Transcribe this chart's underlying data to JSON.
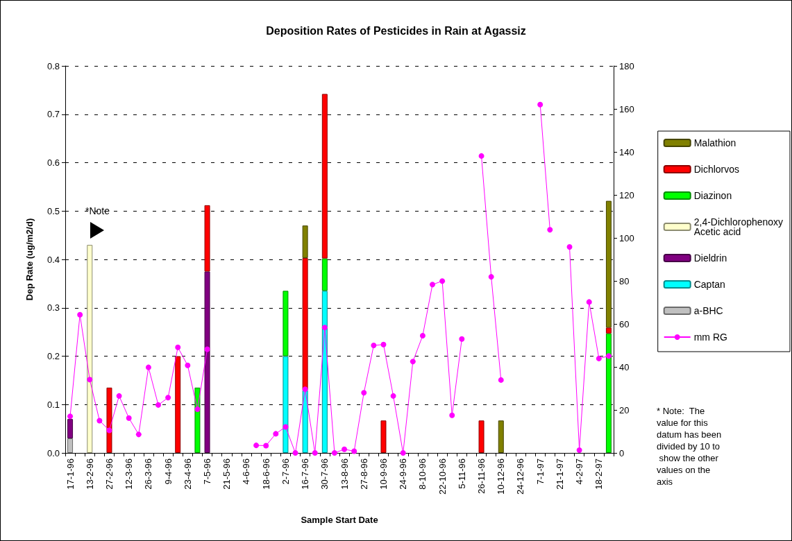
{
  "chart_data": {
    "type": "bar",
    "title": "Deposition Rates of Pesticides in Rain at Agassiz",
    "xlabel": "Sample Start Date",
    "ylabel": "Dep Rate (ug/m2/d)",
    "categories": [
      "17-1-96",
      null,
      "13-2-96",
      null,
      "27-2-96",
      null,
      "12-3-96",
      null,
      "26-3-96",
      null,
      "9-4-96",
      null,
      "23-4-96",
      null,
      "7-5-96",
      null,
      "21-5-96",
      null,
      "4-6-96",
      null,
      "18-6-96",
      null,
      "2-7-96",
      null,
      "16-7-96",
      null,
      "30-7-96",
      null,
      "13-8-96",
      null,
      "27-8-96",
      null,
      "10-9-96",
      null,
      "24-9-96",
      null,
      "8-10-96",
      null,
      "22-10-96",
      null,
      "5-11-96",
      null,
      "26-11-96",
      null,
      "10-12-96",
      null,
      "24-12-96",
      null,
      "7-1-97",
      null,
      "21-1-97",
      null,
      "4-2-97",
      null,
      "18-2-97",
      null
    ],
    "series": [
      {
        "name": "a-BHC",
        "color": "#c0c0c0",
        "values": [
          0.03,
          null,
          null,
          null,
          null,
          null,
          null,
          null,
          null,
          null,
          null,
          null,
          null,
          null,
          null,
          null,
          null,
          null,
          null,
          null,
          null,
          null,
          null,
          null,
          null,
          null,
          null,
          null,
          null,
          null,
          null,
          null,
          null,
          null,
          null,
          null,
          null,
          null,
          null,
          null,
          null,
          null,
          null,
          null,
          null,
          null,
          null,
          null,
          null,
          null,
          null,
          null,
          null,
          null,
          null,
          null
        ]
      },
      {
        "name": "Captan",
        "color": "#00ffff",
        "values": [
          null,
          null,
          null,
          null,
          null,
          null,
          null,
          null,
          null,
          null,
          null,
          null,
          null,
          null,
          null,
          null,
          null,
          null,
          null,
          null,
          null,
          null,
          0.2,
          null,
          0.13,
          null,
          0.335,
          null,
          null,
          null,
          null,
          null,
          null,
          null,
          null,
          null,
          null,
          null,
          null,
          null,
          null,
          null,
          null,
          null,
          null,
          null,
          null,
          null,
          null,
          null,
          null,
          null,
          null,
          null,
          null,
          null
        ]
      },
      {
        "name": "Dieldrin",
        "color": "#800080",
        "values": [
          0.04,
          null,
          null,
          null,
          null,
          null,
          null,
          null,
          null,
          null,
          null,
          null,
          null,
          null,
          0.375,
          null,
          null,
          null,
          null,
          null,
          null,
          null,
          null,
          null,
          null,
          null,
          null,
          null,
          null,
          null,
          null,
          null,
          null,
          null,
          null,
          null,
          null,
          null,
          null,
          null,
          null,
          null,
          null,
          null,
          null,
          null,
          null,
          null,
          null,
          null,
          null,
          null,
          null,
          null,
          null,
          null
        ]
      },
      {
        "name": "2,4-Dichlorophenoxy Acetic acid",
        "color": "#ffffcc",
        "values": [
          null,
          null,
          0.43,
          null,
          null,
          null,
          null,
          null,
          null,
          null,
          null,
          null,
          null,
          null,
          null,
          null,
          null,
          null,
          null,
          null,
          null,
          null,
          null,
          null,
          null,
          null,
          null,
          null,
          null,
          null,
          null,
          null,
          null,
          null,
          null,
          null,
          null,
          null,
          null,
          null,
          null,
          null,
          null,
          null,
          null,
          null,
          null,
          null,
          null,
          null,
          null,
          null,
          null,
          null,
          null,
          null
        ]
      },
      {
        "name": "Diazinon",
        "color": "#00ff00",
        "values": [
          null,
          null,
          null,
          null,
          null,
          null,
          null,
          null,
          null,
          null,
          null,
          null,
          null,
          0.135,
          null,
          null,
          null,
          null,
          null,
          null,
          null,
          null,
          0.135,
          null,
          null,
          null,
          0.067,
          null,
          null,
          null,
          null,
          null,
          null,
          null,
          null,
          null,
          null,
          null,
          null,
          null,
          null,
          null,
          null,
          null,
          null,
          null,
          null,
          null,
          null,
          null,
          null,
          null,
          null,
          null,
          null,
          0.247
        ]
      },
      {
        "name": "Dichlorvos",
        "color": "#ff0000",
        "values": [
          null,
          null,
          null,
          null,
          0.135,
          null,
          null,
          null,
          null,
          null,
          null,
          0.2,
          null,
          null,
          0.137,
          null,
          null,
          null,
          null,
          null,
          null,
          null,
          null,
          null,
          0.273,
          null,
          0.34,
          null,
          null,
          null,
          null,
          null,
          0.067,
          null,
          null,
          null,
          null,
          null,
          null,
          null,
          null,
          null,
          0.067,
          null,
          null,
          null,
          null,
          null,
          null,
          null,
          null,
          null,
          null,
          null,
          null,
          0.012
        ]
      },
      {
        "name": "Malathion",
        "color": "#808000",
        "values": [
          null,
          null,
          null,
          null,
          null,
          null,
          null,
          null,
          null,
          null,
          null,
          null,
          null,
          null,
          null,
          null,
          null,
          null,
          null,
          null,
          null,
          null,
          null,
          null,
          0.067,
          null,
          null,
          null,
          null,
          null,
          null,
          null,
          null,
          null,
          null,
          null,
          null,
          null,
          null,
          null,
          null,
          null,
          null,
          null,
          0.067,
          null,
          null,
          null,
          null,
          null,
          null,
          null,
          null,
          null,
          null,
          0.262
        ]
      },
      {
        "name": "mm RG",
        "type": "line",
        "axis": "y2",
        "color": "#ff00ff",
        "values": [
          17,
          64.3,
          34.1,
          15,
          10.5,
          26.5,
          16.2,
          8.6,
          39.8,
          22.3,
          25.7,
          49.1,
          40.7,
          20.3,
          48.2,
          null,
          null,
          null,
          null,
          3.5,
          3.4,
          8.9,
          12.1,
          0,
          29.6,
          0,
          58.3,
          0,
          1.7,
          0.8,
          28,
          50,
          50.4,
          26.5,
          0,
          42.5,
          54.5,
          78.3,
          79.9,
          17.5,
          53,
          null,
          138.1,
          81.9,
          33.9,
          null,
          null,
          null,
          162,
          103.8,
          null,
          95.8,
          1.3,
          70.2,
          43.9,
          45.1
        ]
      }
    ],
    "stacked": true,
    "ylim": [
      0,
      0.8
    ],
    "yticks": [
      {
        "value": 0,
        "label": "0.0"
      },
      0.1,
      0.2,
      0.3,
      0.4,
      0.5,
      0.6,
      0.7,
      0.8
    ],
    "y2lim": [
      0,
      180
    ],
    "y2ticks": [
      0,
      20,
      40,
      60,
      80,
      100,
      120,
      140,
      160,
      180
    ],
    "grid": "y",
    "legend": "right",
    "marker": "circle",
    "line_style": "solid",
    "annotations": [
      "*Note",
      "* Note:  The value for this datum has been divided by 10 to show the other values on the axis"
    ]
  }
}
